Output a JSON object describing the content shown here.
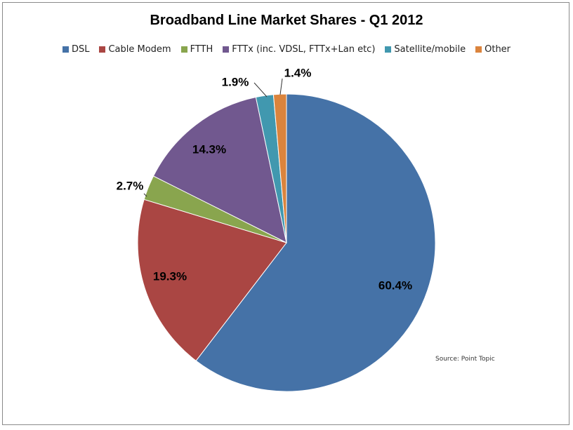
{
  "chart_data": {
    "type": "pie",
    "title": "Broadband Line Market Shares  - Q1 2012",
    "start_angle": "12 o'clock, clockwise",
    "legend_position": "top",
    "slices": [
      {
        "name": "DSL",
        "value": 60.4,
        "label": "60.4%",
        "color": "#4572A7"
      },
      {
        "name": "Cable Modem",
        "value": 19.3,
        "label": "19.3%",
        "color": "#AA4643"
      },
      {
        "name": "FTTH",
        "value": 2.7,
        "label": "2.7%",
        "color": "#89A54E"
      },
      {
        "name": "FTTx (inc. VDSL, FTTx+Lan etc)",
        "value": 14.3,
        "label": "14.3%",
        "color": "#71588F"
      },
      {
        "name": "Satellite/mobile",
        "value": 1.9,
        "label": "1.9%",
        "color": "#4198AF"
      },
      {
        "name": "Other",
        "value": 1.4,
        "label": "1.4%",
        "color": "#DB843D"
      }
    ],
    "annotation": "Source: Point Topic"
  }
}
